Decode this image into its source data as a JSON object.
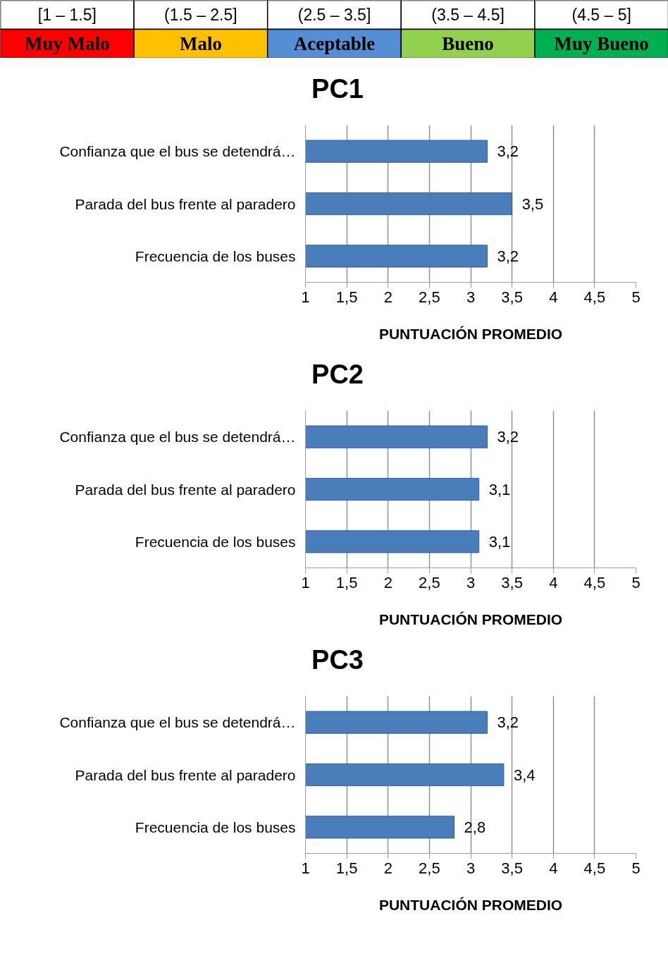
{
  "chart_data": [
    {
      "type": "other",
      "categories": [
        "Muy Malo",
        "Malo",
        "Aceptable",
        "Bueno",
        "Muy Bueno"
      ],
      "annotations": [
        "[1 – 1.5]",
        "(1.5 – 2.5]",
        "(2.5 – 3.5]",
        "(3.5 – 4.5]",
        "(4.5 – 5]"
      ],
      "colors": [
        "#ff0000",
        "#ffc000",
        "#558ed5",
        "#92d050",
        "#00b050"
      ]
    },
    {
      "type": "bar",
      "orientation": "horizontal",
      "title": "PC1",
      "xlabel": "PUNTUACIÓN PROMEDIO",
      "categories": [
        "Confianza que el bus se detendrá…",
        "Parada del bus frente al paradero",
        "Frecuencia de los buses"
      ],
      "values": [
        3.2,
        3.5,
        3.2
      ],
      "value_labels": [
        "3,2",
        "3,5",
        "3,2"
      ],
      "color": "#4a7ebb",
      "xlim": [
        1,
        5
      ],
      "xticks": [
        1,
        {
          "value": 1.5,
          "label": "1,5"
        },
        2,
        {
          "value": 2.5,
          "label": "2,5"
        },
        3,
        {
          "value": 3.5,
          "label": "3,5"
        },
        4,
        {
          "value": 4.5,
          "label": "4,5"
        },
        5
      ],
      "grid": "x"
    },
    {
      "type": "bar",
      "orientation": "horizontal",
      "title": "PC2",
      "xlabel": "PUNTUACIÓN PROMEDIO",
      "categories": [
        "Confianza que el bus se detendrá…",
        "Parada del bus frente al paradero",
        "Frecuencia de los buses"
      ],
      "values": [
        3.2,
        3.1,
        3.1
      ],
      "value_labels": [
        "3,2",
        "3,1",
        "3,1"
      ],
      "color": "#4a7ebb",
      "xlim": [
        1,
        5
      ],
      "xticks": [
        1,
        {
          "value": 1.5,
          "label": "1,5"
        },
        2,
        {
          "value": 2.5,
          "label": "2,5"
        },
        3,
        {
          "value": 3.5,
          "label": "3,5"
        },
        4,
        {
          "value": 4.5,
          "label": "4,5"
        },
        5
      ],
      "grid": "x"
    },
    {
      "type": "bar",
      "orientation": "horizontal",
      "title": "PC3",
      "xlabel": "PUNTUACIÓN PROMEDIO",
      "categories": [
        "Confianza que el bus se detendrá…",
        "Parada del bus frente al paradero",
        "Frecuencia de los buses"
      ],
      "values": [
        3.2,
        3.4,
        2.8
      ],
      "value_labels": [
        "3,2",
        "3,4",
        "2,8"
      ],
      "color": "#4a7ebb",
      "xlim": [
        1,
        5
      ],
      "xticks": [
        1,
        {
          "value": 1.5,
          "label": "1,5"
        },
        2,
        {
          "value": 2.5,
          "label": "2,5"
        },
        3,
        {
          "value": 3.5,
          "label": "3,5"
        },
        4,
        {
          "value": 4.5,
          "label": "4,5"
        },
        5
      ],
      "grid": "x"
    }
  ]
}
